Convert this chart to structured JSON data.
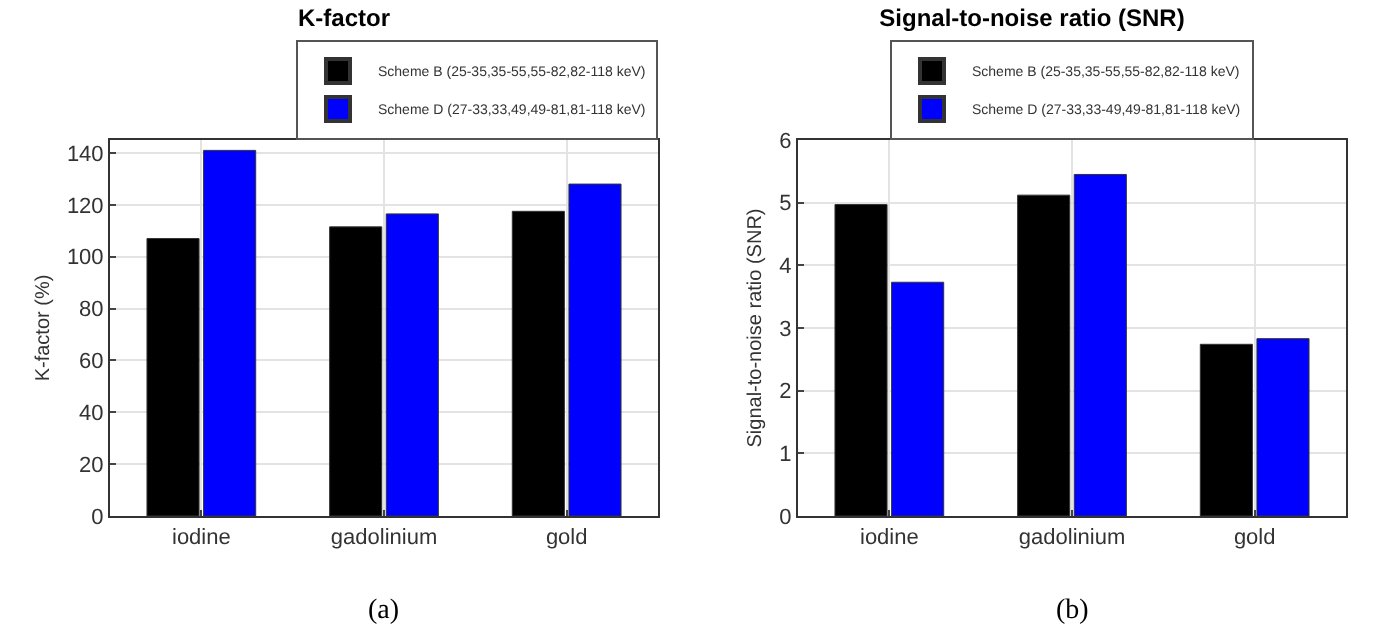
{
  "chart_data": [
    {
      "type": "bar",
      "title": "K-factor",
      "ylabel": "K-factor (%)",
      "categories": [
        "iodine",
        "gadolinium",
        "gold"
      ],
      "series": [
        {
          "name": "Scheme B (25-35,35-55,55-82,82-118 keV)",
          "color": "#000000",
          "values": [
            107,
            111.5,
            117.5
          ]
        },
        {
          "name": "Scheme D (27-33,33,49,49-81,81-118 keV)",
          "color": "#0000ff",
          "values": [
            141,
            116.5,
            128
          ]
        }
      ],
      "ylim": [
        0,
        145
      ],
      "yticks": [
        0,
        20,
        40,
        60,
        80,
        100,
        120,
        140
      ],
      "grid": true,
      "legend": "top right",
      "annotations": [
        "(a)"
      ]
    },
    {
      "type": "bar",
      "title": "Signal-to-noise ratio (SNR)",
      "ylabel": "Signal-to-noise ratio (SNR)",
      "categories": [
        "iodine",
        "gadolinium",
        "gold"
      ],
      "series": [
        {
          "name": "Scheme B (25-35,35-55,55-82,82-118 keV)",
          "color": "#000000",
          "values": [
            4.97,
            5.12,
            2.74
          ]
        },
        {
          "name": "Scheme D (27-33,33-49,49-81,81-118 keV)",
          "color": "#0000ff",
          "values": [
            3.73,
            5.45,
            2.83
          ]
        }
      ],
      "ylim": [
        0,
        6
      ],
      "yticks": [
        0,
        1,
        2,
        3,
        4,
        5,
        6
      ],
      "grid": true,
      "legend": "top",
      "annotations": [
        "(b)"
      ]
    }
  ]
}
